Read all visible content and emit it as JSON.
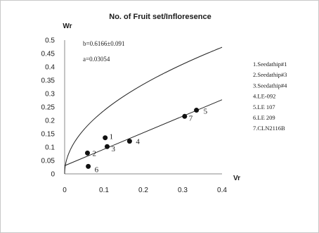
{
  "chart_data": {
    "type": "scatter",
    "title": "No. of Fruit set/Infloresence",
    "xlabel": "Vr",
    "ylabel": "Wr",
    "xlim": [
      0,
      0.4
    ],
    "ylim": [
      0,
      0.5
    ],
    "x_ticks": [
      "0",
      "0.1",
      "0.2",
      "0.3",
      "0.4"
    ],
    "y_ticks": [
      "0",
      "0.05",
      "0.1",
      "0.15",
      "0.2",
      "0.25",
      "0.3",
      "0.35",
      "0.4",
      "0.45",
      "0.5"
    ],
    "annotations": [
      "b=0.6166±0.091",
      "a=0.03054"
    ],
    "regression_line": {
      "slope": 0.6166,
      "intercept": 0.03054
    },
    "limiting_curve": {
      "formula": "Wr = sqrt(Vr * Vp)",
      "vp": 0.56
    },
    "points": [
      {
        "label": "1",
        "x": 0.103,
        "y": 0.135
      },
      {
        "label": "2",
        "x": 0.058,
        "y": 0.078
      },
      {
        "label": "3",
        "x": 0.108,
        "y": 0.102
      },
      {
        "label": "4",
        "x": 0.165,
        "y": 0.122
      },
      {
        "label": "5",
        "x": 0.335,
        "y": 0.238
      },
      {
        "label": "6",
        "x": 0.06,
        "y": 0.028
      },
      {
        "label": "7",
        "x": 0.305,
        "y": 0.215
      }
    ],
    "legend": [
      "1.Seedathip#1",
      "2.Seedathip#3",
      "3.Seedathip#4",
      "4.LE-092",
      "5.LE 107",
      "6.LE 209",
      "7.CLN2116B"
    ],
    "legend_placement": "right",
    "grid": false
  }
}
